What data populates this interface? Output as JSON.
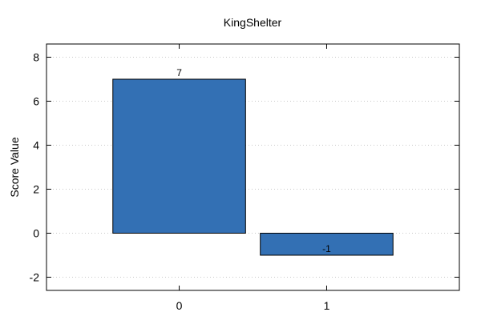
{
  "chart_data": {
    "type": "bar",
    "title": "KingShelter",
    "xlabel": "",
    "ylabel": "Score Value",
    "categories": [
      "0",
      "1"
    ],
    "values": [
      7,
      -1
    ],
    "data_labels": [
      "7",
      "-1"
    ],
    "ylim": [
      -2.6,
      8.6
    ],
    "yticks": [
      -2,
      0,
      2,
      4,
      6,
      8
    ],
    "ytick_labels": [
      "-2",
      "0",
      "2",
      "4",
      "6",
      "8"
    ],
    "xlim": [
      -0.9,
      1.9
    ],
    "grid": "horizontal-dotted",
    "bar_color": "#3370b4",
    "legend": "none"
  }
}
